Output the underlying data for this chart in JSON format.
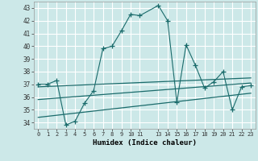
{
  "xlabel": "Humidex (Indice chaleur)",
  "bg_color": "#cce8e8",
  "grid_color": "#ffffff",
  "line_color": "#1a6b6b",
  "xlim": [
    -0.5,
    23.5
  ],
  "ylim": [
    33.5,
    43.5
  ],
  "xtick_positions": [
    0,
    1,
    2,
    3,
    4,
    5,
    6,
    7,
    8,
    9,
    10,
    11,
    13,
    14,
    15,
    16,
    17,
    18,
    19,
    20,
    21,
    22,
    23
  ],
  "xtick_labels": [
    "0",
    "1",
    "2",
    "3",
    "4",
    "5",
    "6",
    "7",
    "8",
    "9",
    "10",
    "11",
    "13",
    "14",
    "15",
    "16",
    "17",
    "18",
    "19",
    "20",
    "21",
    "22",
    "23"
  ],
  "yticks": [
    34,
    35,
    36,
    37,
    38,
    39,
    40,
    41,
    42,
    43
  ],
  "main_x": [
    0,
    1,
    2,
    3,
    4,
    5,
    6,
    7,
    8,
    9,
    10,
    11,
    13,
    14,
    15,
    16,
    17,
    18,
    19,
    20,
    21,
    22,
    23
  ],
  "main_y": [
    37,
    37,
    37.3,
    33.8,
    34.1,
    35.5,
    36.5,
    39.8,
    40.0,
    41.2,
    42.5,
    42.4,
    43.2,
    42.0,
    35.6,
    40.1,
    38.5,
    36.7,
    37.2,
    38.0,
    35.0,
    36.8,
    36.9
  ],
  "trend1_x": [
    0,
    23
  ],
  "trend1_y": [
    36.8,
    37.5
  ],
  "trend2_x": [
    0,
    23
  ],
  "trend2_y": [
    35.8,
    37.1
  ],
  "trend3_x": [
    0,
    23
  ],
  "trend3_y": [
    34.4,
    36.3
  ]
}
